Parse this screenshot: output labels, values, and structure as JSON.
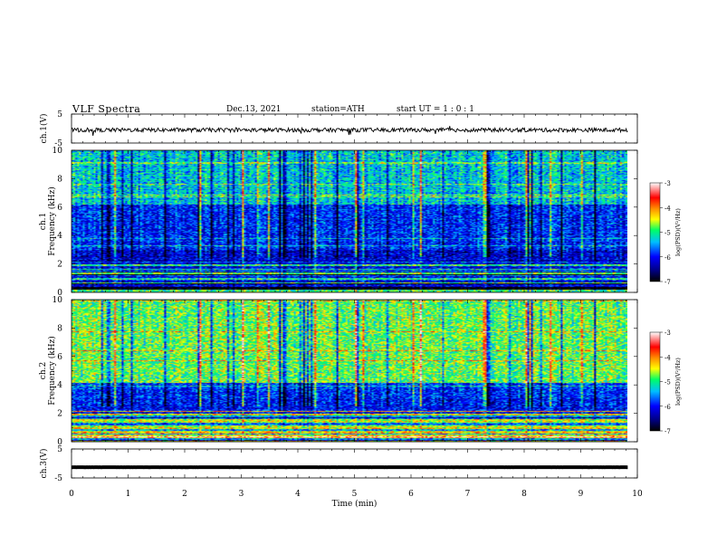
{
  "header": {
    "title": "VLF  Spectra",
    "date": "Dec.13, 2021",
    "station": "station=ATH",
    "start_ut": "start  UT  =   1 : 0  : 1"
  },
  "colors": {
    "waveform": "#000000",
    "colorbar_stops": [
      "#000000",
      "#00008b",
      "#0000ff",
      "#00bfff",
      "#00ff66",
      "#ffff00",
      "#ff8c00",
      "#ff0000",
      "#ffffff"
    ]
  },
  "chart_data": [
    {
      "type": "line",
      "panel": "ch1-waveform",
      "ylabel": "ch.1(V)",
      "yticks": [
        "5",
        "-5"
      ],
      "ylim": [
        -5,
        5
      ],
      "xlim": [
        0,
        10
      ],
      "x_end": 9.83,
      "signal_mean": -0.5,
      "signal_amplitude": 0.7
    },
    {
      "type": "heatmap",
      "panel": "ch1-spectrogram",
      "ylabel_lines": [
        "ch.1",
        "Frequency  (kHz)"
      ],
      "yticks": [
        "10",
        "8",
        "6",
        "4",
        "2",
        "0"
      ],
      "ylim": [
        0,
        10
      ],
      "xlim": [
        0,
        10
      ],
      "x_end": 9.83,
      "colorbar": {
        "label": "log(PSD)(V²/Hz)",
        "ticks": [
          "-3",
          "-4",
          "-5",
          "-6",
          "-7"
        ],
        "range": [
          -7,
          -3
        ]
      }
    },
    {
      "type": "heatmap",
      "panel": "ch2-spectrogram",
      "ylabel_lines": [
        "ch.2",
        "Frequency  (kHz)"
      ],
      "yticks": [
        "10",
        "8",
        "6",
        "4",
        "2",
        "0"
      ],
      "ylim": [
        0,
        10
      ],
      "xlim": [
        0,
        10
      ],
      "x_end": 9.83,
      "colorbar": {
        "label": "log(PSD)(V²/Hz)",
        "ticks": [
          "-3",
          "-4",
          "-5",
          "-6",
          "-7"
        ],
        "range": [
          -7,
          -3
        ]
      }
    },
    {
      "type": "line",
      "panel": "ch3-waveform",
      "ylabel": "ch.3(V)",
      "yticks": [
        "5",
        "-5"
      ],
      "ylim": [
        -5,
        5
      ],
      "xlim": [
        0,
        10
      ],
      "x_end": 9.83,
      "signal_mean": -1.3,
      "signal_amplitude": 0.05
    }
  ],
  "x_axis": {
    "label": "Time  (min)",
    "ticks": [
      "0",
      "1",
      "2",
      "3",
      "4",
      "5",
      "6",
      "7",
      "8",
      "9",
      "10"
    ],
    "range": [
      0,
      10
    ]
  }
}
